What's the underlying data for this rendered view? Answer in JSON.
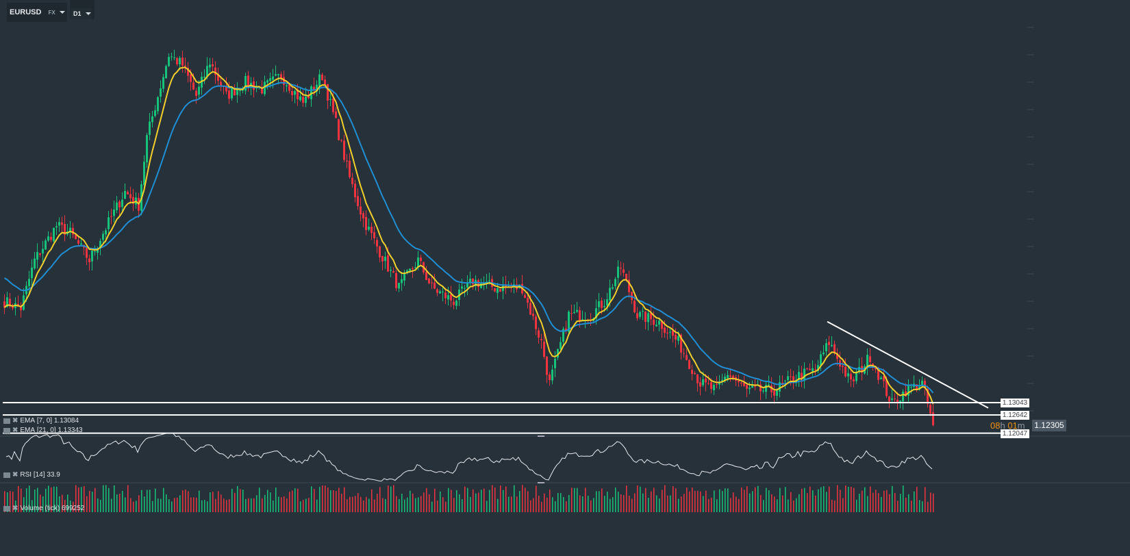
{
  "toolbar": {
    "symbol": "EURUSD",
    "exchange": "FX",
    "timeframe": "D1"
  },
  "indicators": {
    "ema_fast": {
      "label": "EMA",
      "params": "[7, 0]",
      "value": "1.13084",
      "color": "#f5d02a"
    },
    "ema_slow": {
      "label": "EMA",
      "params": "[21, 0]",
      "value": "1.13343",
      "color": "#1f8fd6"
    },
    "rsi": {
      "label": "RSI",
      "params": "[14]",
      "value": "33.9"
    },
    "volume": {
      "label": "Volume",
      "params": "(tick)",
      "value": "699252"
    }
  },
  "price_levels": [
    "1.13043",
    "1.12642",
    "1.12047"
  ],
  "current_price": "1.12305",
  "countdown": {
    "hours": "08",
    "h_unit": "h",
    "minutes": "01",
    "m_unit": "m"
  },
  "colors": {
    "up": "#17c27a",
    "down": "#ef3340",
    "background": "#27313a"
  },
  "chart_data": {
    "type": "candlestick",
    "note_series": "approximate closing-price path (bar index, price)",
    "close_path": [
      [
        0,
        1.1634
      ],
      [
        6,
        1.1612
      ],
      [
        11,
        1.1768
      ],
      [
        19,
        1.188
      ],
      [
        24,
        1.1857
      ],
      [
        31,
        1.1768
      ],
      [
        36,
        1.1857
      ],
      [
        44,
        1.1991
      ],
      [
        49,
        1.1947
      ],
      [
        52,
        1.2169
      ],
      [
        60,
        1.2437
      ],
      [
        65,
        1.2404
      ],
      [
        70,
        1.2303
      ],
      [
        75,
        1.2415
      ],
      [
        81,
        1.2303
      ],
      [
        88,
        1.2348
      ],
      [
        94,
        1.2326
      ],
      [
        101,
        1.237
      ],
      [
        109,
        1.2281
      ],
      [
        116,
        1.237
      ],
      [
        121,
        1.2214
      ],
      [
        126,
        1.2036
      ],
      [
        131,
        1.1902
      ],
      [
        136,
        1.1813
      ],
      [
        144,
        1.1679
      ],
      [
        151,
        1.1768
      ],
      [
        156,
        1.1679
      ],
      [
        164,
        1.1634
      ],
      [
        171,
        1.1701
      ],
      [
        179,
        1.1679
      ],
      [
        189,
        1.1679
      ],
      [
        196,
        1.1501
      ],
      [
        199,
        1.1367
      ],
      [
        206,
        1.159
      ],
      [
        214,
        1.159
      ],
      [
        219,
        1.1634
      ],
      [
        225,
        1.1746
      ],
      [
        231,
        1.159
      ],
      [
        239,
        1.1567
      ],
      [
        246,
        1.1501
      ],
      [
        254,
        1.1367
      ],
      [
        260,
        1.1344
      ],
      [
        264,
        1.14
      ],
      [
        271,
        1.1344
      ],
      [
        281,
        1.1344
      ],
      [
        289,
        1.1389
      ],
      [
        296,
        1.1411
      ],
      [
        301,
        1.1501
      ],
      [
        309,
        1.1367
      ],
      [
        316,
        1.1456
      ],
      [
        324,
        1.13
      ],
      [
        329,
        1.1344
      ],
      [
        335,
        1.1367
      ],
      [
        339,
        1.12305
      ]
    ],
    "trendline": [
      [
        300,
        1.1568
      ],
      [
        359,
        1.1287
      ]
    ],
    "horizontal_levels": [
      1.13043,
      1.12642,
      1.12047
    ]
  }
}
